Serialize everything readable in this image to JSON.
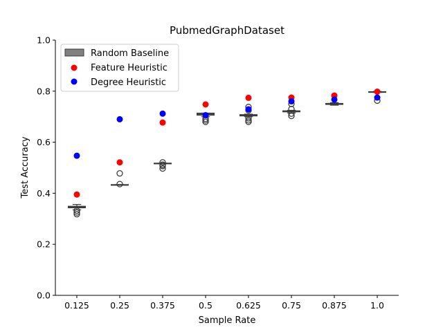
{
  "chart_data": {
    "type": "box+scatter",
    "title": "PubmedGraphDataset",
    "xlabel": "Sample Rate",
    "ylabel": "Test Accuracy",
    "ylim": [
      0.0,
      1.0
    ],
    "yticks": [
      "0.0",
      "0.2",
      "0.4",
      "0.6",
      "0.8",
      "1.0"
    ],
    "categories": [
      "0.125",
      "0.25",
      "0.375",
      "0.5",
      "0.625",
      "0.75",
      "0.875",
      "1.0"
    ],
    "legend": {
      "placement": "top-left",
      "entries": [
        "Random Baseline",
        "Feature Heuristic",
        "Degree Heuristic"
      ]
    },
    "series": [
      {
        "name": "Random Baseline",
        "kind": "box",
        "color": "#808080",
        "boxes": [
          {
            "q1": 0.343,
            "median": 0.346,
            "q3": 0.349,
            "whisker_low": 0.335,
            "whisker_high": 0.356,
            "outliers": [
              0.318,
              0.325,
              0.332
            ]
          },
          {
            "q1": 0.432,
            "median": 0.433,
            "q3": 0.434,
            "whisker_low": 0.432,
            "whisker_high": 0.434,
            "outliers": [
              0.436,
              0.478
            ]
          },
          {
            "q1": 0.516,
            "median": 0.517,
            "q3": 0.518,
            "whisker_low": 0.516,
            "whisker_high": 0.518,
            "outliers": [
              0.497,
              0.507,
              0.512,
              0.521
            ]
          },
          {
            "q1": 0.706,
            "median": 0.71,
            "q3": 0.714,
            "whisker_low": 0.7,
            "whisker_high": 0.714,
            "outliers": [
              0.68,
              0.686,
              0.692
            ]
          },
          {
            "q1": 0.703,
            "median": 0.706,
            "q3": 0.708,
            "whisker_low": 0.7,
            "whisker_high": 0.71,
            "outliers": [
              0.68,
              0.686,
              0.694,
              0.725,
              0.738
            ]
          },
          {
            "q1": 0.719,
            "median": 0.721,
            "q3": 0.723,
            "whisker_low": 0.715,
            "whisker_high": 0.725,
            "outliers": [
              0.703,
              0.712,
              0.73,
              0.75
            ]
          },
          {
            "q1": 0.748,
            "median": 0.75,
            "q3": 0.752,
            "whisker_low": 0.745,
            "whisker_high": 0.755,
            "outliers": []
          },
          {
            "q1": 0.796,
            "median": 0.797,
            "q3": 0.798,
            "whisker_low": 0.795,
            "whisker_high": 0.799,
            "outliers": [
              0.763
            ]
          }
        ]
      },
      {
        "name": "Feature Heuristic",
        "kind": "scatter",
        "color": "#ff0000",
        "values": [
          0.395,
          0.521,
          0.677,
          0.748,
          0.774,
          0.775,
          0.783,
          0.798
        ]
      },
      {
        "name": "Degree Heuristic",
        "kind": "scatter",
        "color": "#0000ff",
        "values": [
          0.547,
          0.69,
          0.712,
          0.706,
          0.729,
          0.76,
          0.767,
          0.775
        ]
      }
    ]
  }
}
